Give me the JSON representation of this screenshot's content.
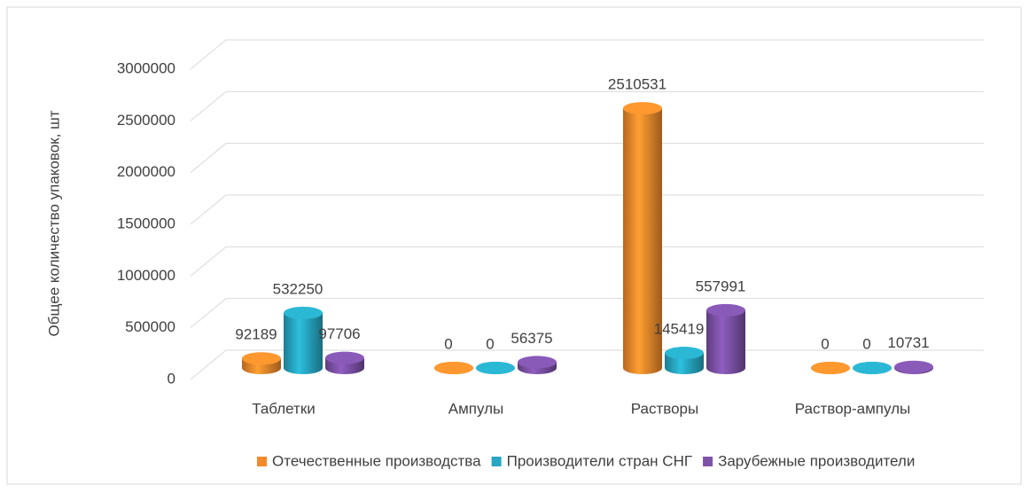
{
  "chart_data": {
    "type": "bar3d",
    "y_axis_label": "Общее количество упаковок, шт",
    "categories": [
      "Таблетки",
      "Ампулы",
      "Растворы",
      "Раствор-ампулы"
    ],
    "series": [
      {
        "name": "Отечественные производства",
        "color": "#f28a2b",
        "values": [
          92189,
          0,
          2510531,
          0
        ]
      },
      {
        "name": "Производители стран СНГ",
        "color": "#27a7c2",
        "values": [
          532250,
          0,
          145419,
          0
        ]
      },
      {
        "name": "Зарубежные производители",
        "color": "#7d52a8",
        "values": [
          97706,
          56375,
          557991,
          10731
        ]
      }
    ],
    "ylim": [
      0,
      3000000
    ],
    "yticks": [
      0,
      500000,
      1000000,
      1500000,
      2000000,
      2500000,
      3000000
    ],
    "grid": true,
    "legend": "bottom"
  }
}
